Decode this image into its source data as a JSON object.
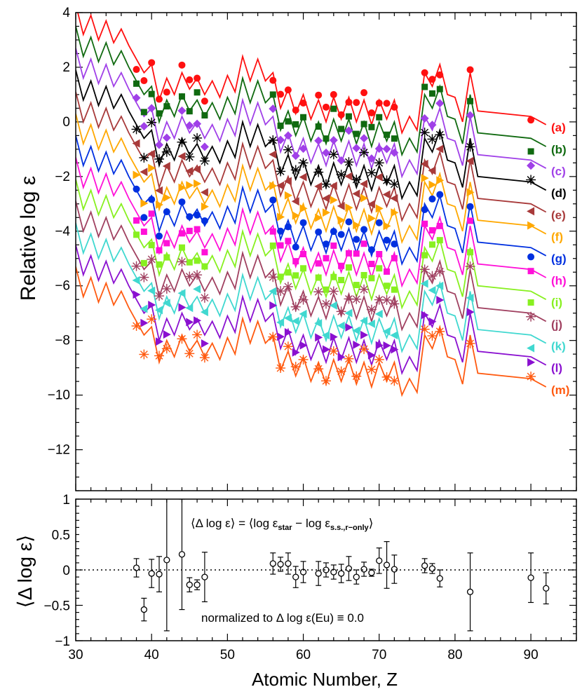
{
  "colors": {
    "a": "#ff1010",
    "b": "#106a10",
    "c": "#a040e8",
    "d": "#000000",
    "e": "#a83a3a",
    "f": "#ffa800",
    "g": "#0030e0",
    "h": "#ff10d8",
    "i": "#88f020",
    "j": "#a04060",
    "k": "#40d8d0",
    "l": "#8a10d0",
    "m": "#ff5a10"
  },
  "chart_data": [
    {
      "type": "line",
      "ylabel": "Relative log ε",
      "xlim": [
        30,
        96
      ],
      "ylim": [
        -13.5,
        4
      ],
      "ytick_labels": [
        "4",
        "2",
        "0",
        "−2",
        "−4",
        "−6",
        "−8",
        "−10",
        "−12"
      ],
      "ytick_values": [
        4,
        2,
        0,
        -2,
        -4,
        -6,
        -8,
        -10,
        -12
      ],
      "series_labels": [
        "(a)",
        "(b)",
        "(c)",
        "(d)",
        "(e)",
        "(f)",
        "(g)",
        "(h)",
        "(i)",
        "(j)",
        "(k)",
        "(l)",
        "(m)"
      ],
      "series_offsets": [
        0,
        -0.8,
        -1.6,
        -2.4,
        -3.2,
        -4.0,
        -4.8,
        -5.6,
        -6.4,
        -7.2,
        -8.0,
        -8.8,
        -9.6
      ],
      "series_markers": [
        "circle",
        "square",
        "diamond",
        "asterisk",
        "triangle-left",
        "triangle-right",
        "circle",
        "square",
        "square",
        "asterisk",
        "triangle-left",
        "triangle-right",
        "asterisk"
      ],
      "template_line": {
        "x": [
          30,
          31,
          32,
          33,
          34,
          35,
          36,
          37,
          38,
          39,
          40,
          41,
          42,
          43,
          44,
          45,
          46,
          47,
          48,
          49,
          50,
          51,
          52,
          53,
          54,
          55,
          56,
          57,
          58,
          59,
          60,
          61,
          62,
          63,
          64,
          65,
          66,
          67,
          68,
          69,
          70,
          71,
          72,
          73,
          74,
          75,
          76,
          77,
          78,
          79,
          80,
          81,
          82,
          83,
          90,
          92
        ],
        "y": [
          4.3,
          3.2,
          3.9,
          3.0,
          3.7,
          2.9,
          3.4,
          2.8,
          2.3,
          1.8,
          2.1,
          0.8,
          1.6,
          1.0,
          1.8,
          1.2,
          1.6,
          1.0,
          1.5,
          0.9,
          1.7,
          1.1,
          2.4,
          1.5,
          2.3,
          1.5,
          1.8,
          0.5,
          1.2,
          0.3,
          1.0,
          0.1,
          0.8,
          0.0,
          0.9,
          0.1,
          0.9,
          0.0,
          0.8,
          -0.1,
          0.8,
          0.1,
          0.8,
          -0.4,
          0.2,
          -0.3,
          1.8,
          1.3,
          2.1,
          1.0,
          0.9,
          0.0,
          1.8,
          0.4,
          0.2,
          -0.1
        ]
      },
      "template_points": {
        "x": [
          38,
          39,
          40,
          41,
          42,
          44,
          45,
          46,
          47,
          56,
          57,
          58,
          59,
          60,
          62,
          63,
          64,
          65,
          66,
          67,
          68,
          69,
          70,
          71,
          72,
          76,
          77,
          78,
          82,
          90
        ],
        "y": [
          2.2,
          1.3,
          2.1,
          0.9,
          1.3,
          1.8,
          1.4,
          1.6,
          0.9,
          1.8,
          0.8,
          1.1,
          0.5,
          0.9,
          0.7,
          0.4,
          1.0,
          0.4,
          1.0,
          0.5,
          1.0,
          0.4,
          0.9,
          0.4,
          0.4,
          1.8,
          1.7,
          2.0,
          1.7,
          0.0
        ]
      }
    },
    {
      "type": "scatter",
      "xlabel": "Atomic Number, Z",
      "ylabel": "⟨Δ log ε⟩",
      "xlim": [
        30,
        96
      ],
      "ylim": [
        -1,
        1
      ],
      "xtick_labels": [
        "30",
        "40",
        "50",
        "60",
        "70",
        "80",
        "90"
      ],
      "xtick_values": [
        30,
        40,
        50,
        60,
        70,
        80,
        90
      ],
      "ytick_labels": [
        "1",
        "0.5",
        "0",
        "−0.5",
        "−1"
      ],
      "ytick_values": [
        1,
        0.5,
        0,
        -0.5,
        -1
      ],
      "reference_line_y": 0,
      "annotation_top_main": "⟨Δ log ε⟩ = ⟨log ε",
      "annotation_top_sub1": "star",
      "annotation_top_mid": " − log ε",
      "annotation_top_sub2": "s.s.,r−only",
      "annotation_top_end": "⟩",
      "annotation_bottom": "normalized to Δ log ε(Eu) ≡ 0.0",
      "points": [
        {
          "x": 38,
          "y": 0.03,
          "err": 0.13
        },
        {
          "x": 39,
          "y": -0.56,
          "err": 0.16
        },
        {
          "x": 40,
          "y": -0.05,
          "err": 0.2
        },
        {
          "x": 41,
          "y": -0.06,
          "err": 0.25
        },
        {
          "x": 42,
          "y": 0.14,
          "err": 1.0
        },
        {
          "x": 44,
          "y": 0.22,
          "err": 0.78
        },
        {
          "x": 45,
          "y": -0.21,
          "err": 0.1
        },
        {
          "x": 46,
          "y": -0.21,
          "err": 0.07
        },
        {
          "x": 47,
          "y": -0.1,
          "err": 0.35
        },
        {
          "x": 56,
          "y": 0.09,
          "err": 0.15
        },
        {
          "x": 57,
          "y": 0.08,
          "err": 0.1
        },
        {
          "x": 58,
          "y": 0.09,
          "err": 0.15
        },
        {
          "x": 59,
          "y": -0.1,
          "err": 0.15
        },
        {
          "x": 60,
          "y": -0.03,
          "err": 0.15
        },
        {
          "x": 62,
          "y": -0.05,
          "err": 0.17
        },
        {
          "x": 63,
          "y": 0.0,
          "err": 0.1
        },
        {
          "x": 64,
          "y": -0.03,
          "err": 0.1
        },
        {
          "x": 65,
          "y": -0.05,
          "err": 0.13
        },
        {
          "x": 66,
          "y": 0.02,
          "err": 0.17
        },
        {
          "x": 67,
          "y": -0.1,
          "err": 0.1
        },
        {
          "x": 68,
          "y": 0.01,
          "err": 0.1
        },
        {
          "x": 69,
          "y": -0.04,
          "err": 0.05
        },
        {
          "x": 70,
          "y": 0.13,
          "err": 0.18
        },
        {
          "x": 71,
          "y": 0.07,
          "err": 0.33
        },
        {
          "x": 72,
          "y": 0.01,
          "err": 0.2
        },
        {
          "x": 76,
          "y": 0.06,
          "err": 0.1
        },
        {
          "x": 77,
          "y": 0.02,
          "err": 0.07
        },
        {
          "x": 78,
          "y": -0.12,
          "err": 0.12
        },
        {
          "x": 82,
          "y": -0.31,
          "err": 0.55
        },
        {
          "x": 90,
          "y": -0.11,
          "err": 0.35
        },
        {
          "x": 92,
          "y": -0.26,
          "err": 0.22
        }
      ]
    }
  ]
}
